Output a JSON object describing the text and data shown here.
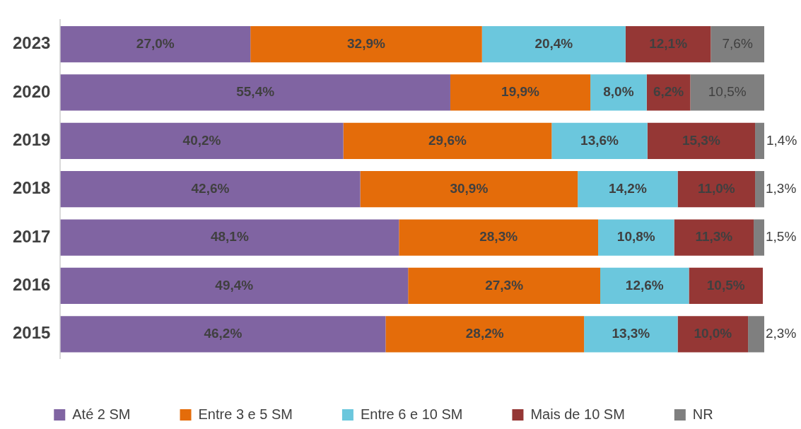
{
  "chart_data": {
    "type": "bar",
    "orientation": "horizontal",
    "stacked": true,
    "legend": "bottom",
    "tick_labels": "y",
    "xlim": [
      0,
      100
    ],
    "categories": [
      "2023",
      "2020",
      "2019",
      "2018",
      "2017",
      "2016",
      "2015"
    ],
    "series": [
      {
        "name": "Até 2 SM",
        "color": "#8064a2",
        "values": [
          27.0,
          55.4,
          40.2,
          42.6,
          48.1,
          49.4,
          46.2
        ],
        "value_labels": [
          "27,0%",
          "55,4%",
          "40,2%",
          "42,6%",
          "48,1%",
          "49,4%",
          "46,2%"
        ]
      },
      {
        "name": "Entre 3 e 5 SM",
        "color": "#e46c0a",
        "values": [
          32.9,
          19.9,
          29.6,
          30.9,
          28.3,
          27.3,
          28.2
        ],
        "value_labels": [
          "32,9%",
          "19,9%",
          "29,6%",
          "30,9%",
          "28,3%",
          "27,3%",
          "28,2%"
        ]
      },
      {
        "name": "Entre 6 e 10 SM",
        "color": "#6bc7dd",
        "values": [
          20.4,
          8.0,
          13.6,
          14.2,
          10.8,
          12.6,
          13.3
        ],
        "value_labels": [
          "20,4%",
          "8,0%",
          "13,6%",
          "14,2%",
          "10,8%",
          "12,6%",
          "13,3%"
        ]
      },
      {
        "name": "Mais de 10 SM",
        "color": "#953735",
        "values": [
          12.1,
          6.2,
          15.3,
          11.0,
          11.3,
          10.5,
          10.0
        ],
        "value_labels": [
          "12,1%",
          "6,2%",
          "15,3%",
          "11,0%",
          "11,3%",
          "10,5%",
          "10,0%"
        ]
      },
      {
        "name": "NR",
        "color": "#7f7f7f",
        "values": [
          7.6,
          10.5,
          1.4,
          1.3,
          1.5,
          null,
          2.3
        ],
        "value_labels": [
          "7,6%",
          "10,5%",
          "1,4%",
          "1,3%",
          "1,5%",
          null,
          "2,3%"
        ]
      }
    ]
  }
}
